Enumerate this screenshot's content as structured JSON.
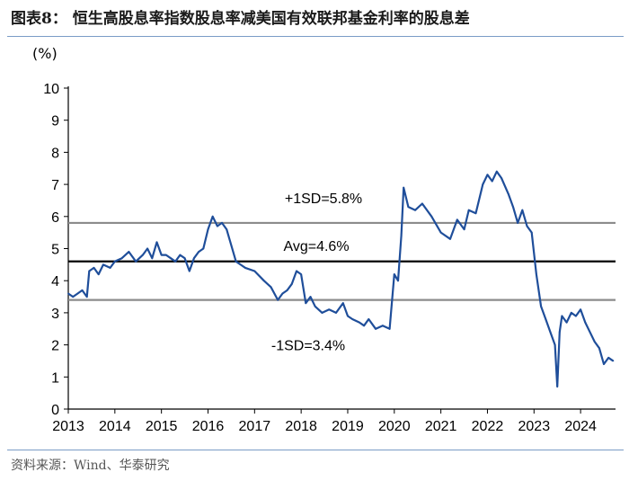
{
  "figure_title": "图表8：  恒生高股息率指数股息率减美国有效联邦基金利率的股息差",
  "source": "资料来源：Wind、华泰研究",
  "chart_data": {
    "type": "line",
    "ylabel": "(%)",
    "ylim": [
      0,
      10
    ],
    "yticks": [
      0,
      1,
      2,
      3,
      4,
      5,
      6,
      7,
      8,
      9,
      10
    ],
    "xlim": [
      2013.0,
      2024.75
    ],
    "xticks": [
      2013,
      2014,
      2015,
      2016,
      2017,
      2018,
      2019,
      2020,
      2021,
      2022,
      2023,
      2024
    ],
    "grid": false,
    "legend": "none",
    "series_color": "#1f4e9a",
    "reference_lines": [
      {
        "label": "+1SD=5.8%",
        "value": 5.8,
        "color": "#8c8c8c"
      },
      {
        "label": "Avg=4.6%",
        "value": 4.6,
        "color": "#000000"
      },
      {
        "label": "-1SD=3.4%",
        "value": 3.4,
        "color": "#8c8c8c"
      }
    ],
    "series": [
      {
        "x": [
          2013.0,
          2013.1,
          2013.2,
          2013.3,
          2013.4,
          2013.45,
          2013.55,
          2013.65,
          2013.75,
          2013.9,
          2014.0,
          2014.15,
          2014.3,
          2014.45,
          2014.6,
          2014.7,
          2014.8,
          2014.9,
          2015.0,
          2015.1,
          2015.2,
          2015.3,
          2015.4,
          2015.5,
          2015.6,
          2015.7,
          2015.8,
          2015.9,
          2016.0,
          2016.1,
          2016.2,
          2016.3,
          2016.4,
          2016.5,
          2016.6,
          2016.7,
          2016.8,
          2017.0,
          2017.2,
          2017.35,
          2017.5,
          2017.6,
          2017.7,
          2017.8,
          2017.9,
          2018.0,
          2018.1,
          2018.2,
          2018.3,
          2018.45,
          2018.6,
          2018.75,
          2018.9,
          2019.0,
          2019.1,
          2019.25,
          2019.35,
          2019.45,
          2019.6,
          2019.75,
          2019.9,
          2020.0,
          2020.08,
          2020.15,
          2020.2,
          2020.3,
          2020.45,
          2020.6,
          2020.8,
          2021.0,
          2021.2,
          2021.35,
          2021.5,
          2021.6,
          2021.75,
          2021.9,
          2022.0,
          2022.1,
          2022.2,
          2022.3,
          2022.45,
          2022.55,
          2022.65,
          2022.75,
          2022.85,
          2022.95,
          2023.05,
          2023.15,
          2023.25,
          2023.35,
          2023.45,
          2023.5,
          2023.55,
          2023.6,
          2023.7,
          2023.8,
          2023.9,
          2024.0,
          2024.1,
          2024.2,
          2024.3,
          2024.4,
          2024.5,
          2024.6,
          2024.7
        ],
        "y": [
          3.6,
          3.5,
          3.6,
          3.7,
          3.5,
          4.3,
          4.4,
          4.2,
          4.5,
          4.4,
          4.6,
          4.7,
          4.9,
          4.6,
          4.8,
          5.0,
          4.7,
          5.2,
          4.8,
          4.8,
          4.7,
          4.6,
          4.8,
          4.7,
          4.3,
          4.7,
          4.9,
          5.0,
          5.6,
          6.0,
          5.7,
          5.8,
          5.6,
          5.1,
          4.6,
          4.5,
          4.4,
          4.3,
          4.0,
          3.8,
          3.4,
          3.6,
          3.7,
          3.9,
          4.3,
          4.2,
          3.3,
          3.5,
          3.2,
          3.0,
          3.1,
          3.0,
          3.3,
          2.9,
          2.8,
          2.7,
          2.6,
          2.8,
          2.5,
          2.6,
          2.5,
          4.2,
          4.0,
          5.4,
          6.9,
          6.3,
          6.2,
          6.4,
          6.0,
          5.5,
          5.3,
          5.9,
          5.6,
          6.2,
          6.1,
          7.0,
          7.3,
          7.1,
          7.4,
          7.2,
          6.7,
          6.3,
          5.8,
          6.2,
          5.7,
          5.5,
          4.2,
          3.2,
          2.8,
          2.4,
          2.0,
          0.7,
          2.4,
          2.9,
          2.7,
          3.0,
          2.9,
          3.1,
          2.7,
          2.4,
          2.1,
          1.9,
          1.4,
          1.6,
          1.5
        ]
      }
    ]
  }
}
